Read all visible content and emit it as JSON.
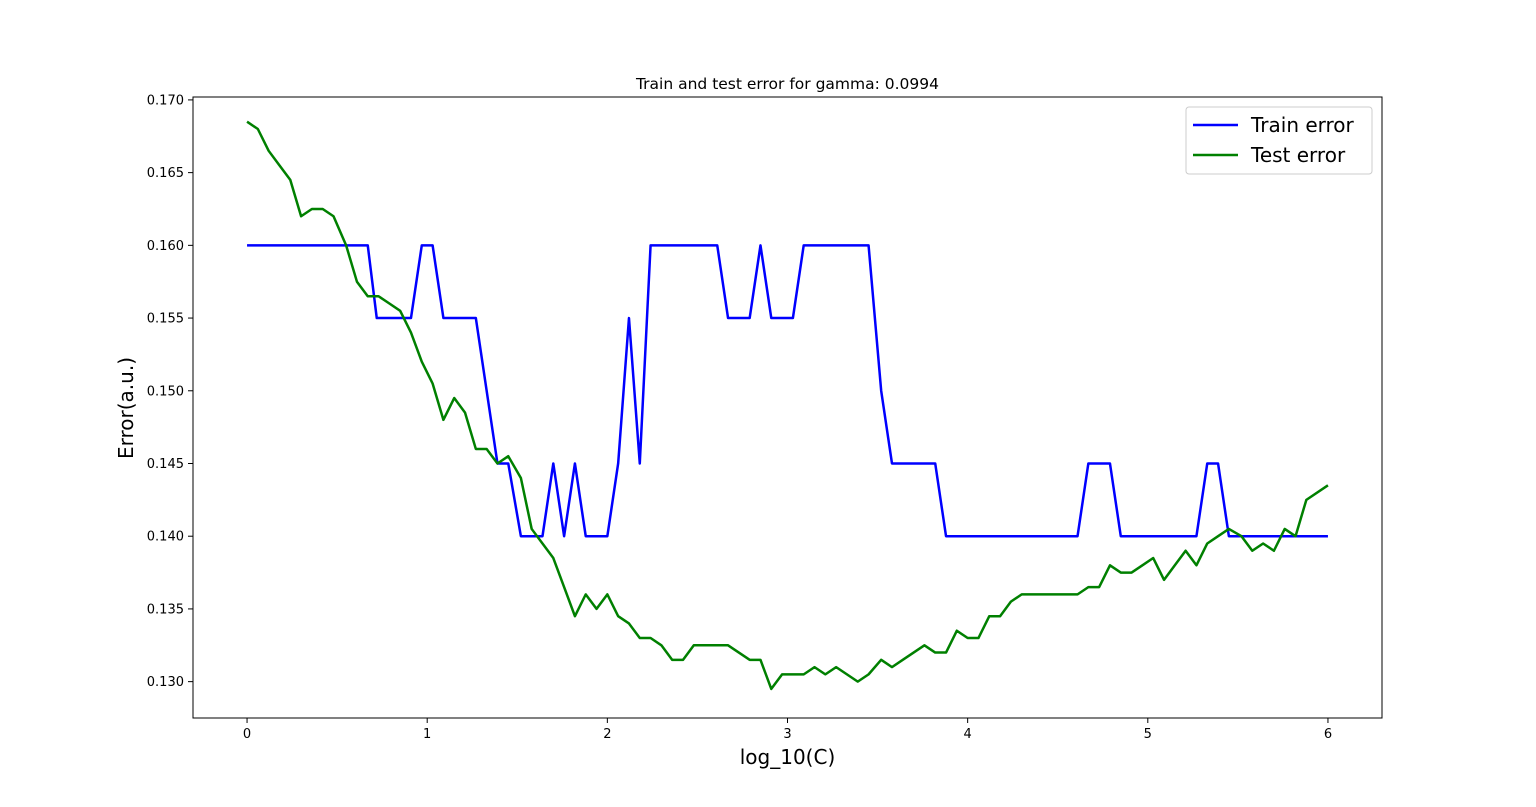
{
  "chart_data": {
    "type": "line",
    "title": "Train and test error for gamma: 0.0994",
    "xlabel": "log_10(C)",
    "ylabel": "Error(a.u.)",
    "xlim": [
      -0.3,
      6.3
    ],
    "ylim": [
      0.1275,
      0.1702
    ],
    "xticks": [
      0,
      1,
      2,
      3,
      4,
      5,
      6
    ],
    "yticks": [
      0.13,
      0.135,
      0.14,
      0.145,
      0.15,
      0.155,
      0.16,
      0.165,
      0.17
    ],
    "xtick_labels": [
      "0",
      "1",
      "2",
      "3",
      "4",
      "5",
      "6"
    ],
    "ytick_labels": [
      "0.130",
      "0.135",
      "0.140",
      "0.145",
      "0.150",
      "0.155",
      "0.160",
      "0.165",
      "0.170"
    ],
    "grid": false,
    "legend_position": "top-right",
    "series": [
      {
        "name": "Train error",
        "color": "#0000ff",
        "points": [
          [
            0,
            0.16
          ],
          [
            0.67,
            0.16
          ],
          [
            0.72,
            0.155
          ],
          [
            0.91,
            0.155
          ],
          [
            0.97,
            0.16
          ],
          [
            1.03,
            0.16
          ],
          [
            1.09,
            0.155
          ],
          [
            1.27,
            0.155
          ],
          [
            1.39,
            0.145
          ],
          [
            1.45,
            0.145
          ],
          [
            1.52,
            0.14
          ],
          [
            1.64,
            0.14
          ],
          [
            1.7,
            0.145
          ],
          [
            1.76,
            0.14
          ],
          [
            1.82,
            0.145
          ],
          [
            1.88,
            0.14
          ],
          [
            2.0,
            0.14
          ],
          [
            2.06,
            0.145
          ],
          [
            2.12,
            0.155
          ],
          [
            2.18,
            0.145
          ],
          [
            2.24,
            0.16
          ],
          [
            2.61,
            0.16
          ],
          [
            2.67,
            0.155
          ],
          [
            2.79,
            0.155
          ],
          [
            2.85,
            0.16
          ],
          [
            2.91,
            0.155
          ],
          [
            3.03,
            0.155
          ],
          [
            3.09,
            0.16
          ],
          [
            3.45,
            0.16
          ],
          [
            3.52,
            0.15
          ],
          [
            3.58,
            0.145
          ],
          [
            3.82,
            0.145
          ],
          [
            3.88,
            0.14
          ],
          [
            4.61,
            0.14
          ],
          [
            4.67,
            0.145
          ],
          [
            4.79,
            0.145
          ],
          [
            4.85,
            0.14
          ],
          [
            5.27,
            0.14
          ],
          [
            5.33,
            0.145
          ],
          [
            5.39,
            0.145
          ],
          [
            5.45,
            0.14
          ],
          [
            6.0,
            0.14
          ]
        ]
      },
      {
        "name": "Test error",
        "color": "#008000",
        "points": [
          [
            0,
            0.1685
          ],
          [
            0.06,
            0.168
          ],
          [
            0.12,
            0.1665
          ],
          [
            0.18,
            0.1655
          ],
          [
            0.24,
            0.1645
          ],
          [
            0.3,
            0.162
          ],
          [
            0.36,
            0.1625
          ],
          [
            0.42,
            0.1625
          ],
          [
            0.48,
            0.162
          ],
          [
            0.55,
            0.16
          ],
          [
            0.61,
            0.1575
          ],
          [
            0.67,
            0.1565
          ],
          [
            0.73,
            0.1565
          ],
          [
            0.79,
            0.156
          ],
          [
            0.85,
            0.1555
          ],
          [
            0.91,
            0.154
          ],
          [
            0.97,
            0.152
          ],
          [
            1.03,
            0.1505
          ],
          [
            1.09,
            0.148
          ],
          [
            1.15,
            0.1495
          ],
          [
            1.21,
            0.1485
          ],
          [
            1.27,
            0.146
          ],
          [
            1.33,
            0.146
          ],
          [
            1.39,
            0.145
          ],
          [
            1.45,
            0.1455
          ],
          [
            1.52,
            0.144
          ],
          [
            1.58,
            0.1405
          ],
          [
            1.64,
            0.1395
          ],
          [
            1.7,
            0.1385
          ],
          [
            1.76,
            0.1365
          ],
          [
            1.82,
            0.1345
          ],
          [
            1.88,
            0.136
          ],
          [
            1.94,
            0.135
          ],
          [
            2.0,
            0.136
          ],
          [
            2.06,
            0.1345
          ],
          [
            2.12,
            0.134
          ],
          [
            2.18,
            0.133
          ],
          [
            2.24,
            0.133
          ],
          [
            2.3,
            0.1325
          ],
          [
            2.36,
            0.1315
          ],
          [
            2.42,
            0.1315
          ],
          [
            2.48,
            0.1325
          ],
          [
            2.55,
            0.1325
          ],
          [
            2.61,
            0.1325
          ],
          [
            2.67,
            0.1325
          ],
          [
            2.73,
            0.132
          ],
          [
            2.79,
            0.1315
          ],
          [
            2.85,
            0.1315
          ],
          [
            2.91,
            0.1295
          ],
          [
            2.97,
            0.1305
          ],
          [
            3.03,
            0.1305
          ],
          [
            3.09,
            0.1305
          ],
          [
            3.15,
            0.131
          ],
          [
            3.21,
            0.1305
          ],
          [
            3.27,
            0.131
          ],
          [
            3.33,
            0.1305
          ],
          [
            3.39,
            0.13
          ],
          [
            3.45,
            0.1305
          ],
          [
            3.52,
            0.1315
          ],
          [
            3.58,
            0.131
          ],
          [
            3.64,
            0.1315
          ],
          [
            3.7,
            0.132
          ],
          [
            3.76,
            0.1325
          ],
          [
            3.82,
            0.132
          ],
          [
            3.88,
            0.132
          ],
          [
            3.94,
            0.1335
          ],
          [
            4.0,
            0.133
          ],
          [
            4.06,
            0.133
          ],
          [
            4.12,
            0.1345
          ],
          [
            4.18,
            0.1345
          ],
          [
            4.24,
            0.1355
          ],
          [
            4.3,
            0.136
          ],
          [
            4.36,
            0.136
          ],
          [
            4.42,
            0.136
          ],
          [
            4.48,
            0.136
          ],
          [
            4.55,
            0.136
          ],
          [
            4.61,
            0.136
          ],
          [
            4.67,
            0.1365
          ],
          [
            4.73,
            0.1365
          ],
          [
            4.79,
            0.138
          ],
          [
            4.85,
            0.1375
          ],
          [
            4.91,
            0.1375
          ],
          [
            4.97,
            0.138
          ],
          [
            5.03,
            0.1385
          ],
          [
            5.09,
            0.137
          ],
          [
            5.15,
            0.138
          ],
          [
            5.21,
            0.139
          ],
          [
            5.27,
            0.138
          ],
          [
            5.33,
            0.1395
          ],
          [
            5.39,
            0.14
          ],
          [
            5.45,
            0.1405
          ],
          [
            5.52,
            0.14
          ],
          [
            5.58,
            0.139
          ],
          [
            5.64,
            0.1395
          ],
          [
            5.7,
            0.139
          ],
          [
            5.76,
            0.1405
          ],
          [
            5.82,
            0.14
          ],
          [
            5.88,
            0.1425
          ],
          [
            6.0,
            0.1435
          ]
        ]
      }
    ]
  }
}
